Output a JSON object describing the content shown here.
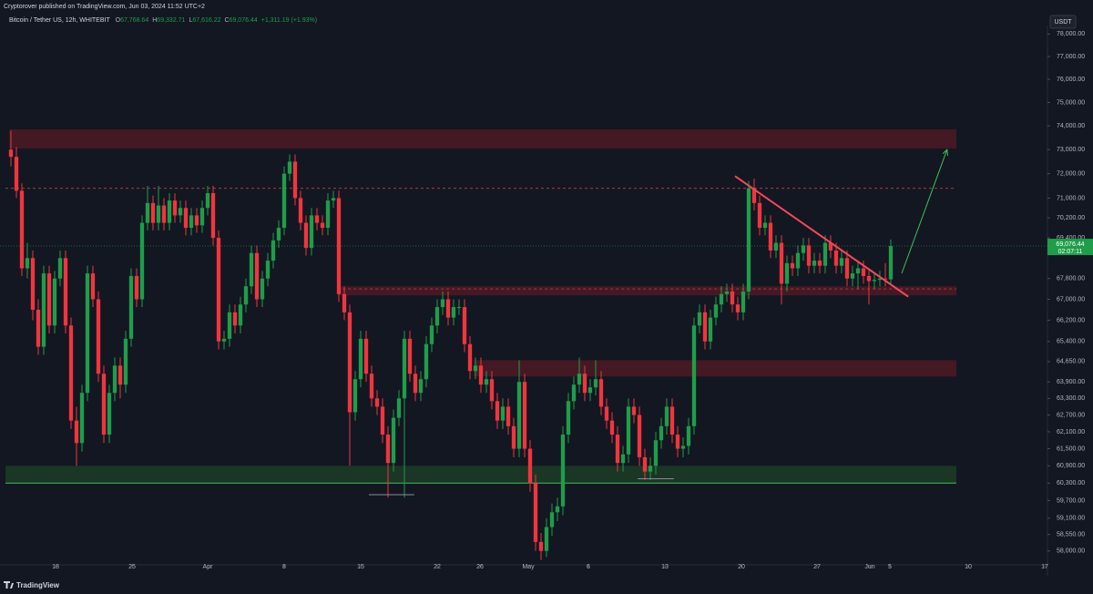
{
  "header": {
    "publisher": "Cryptorover published on TradingView.com, Jun 03, 2024 11:52 UTC+2",
    "symbol": "Bitcoin / Tether US, 12h, WHITEBIT",
    "ohlc": [
      {
        "key": "O",
        "value": "67,768.64"
      },
      {
        "key": "H",
        "value": "69,332.71"
      },
      {
        "key": "L",
        "value": "67,616.22"
      },
      {
        "key": "C",
        "value": "69,076.44"
      }
    ],
    "change": "+1,311.19 (+1.93%)"
  },
  "footer": {
    "brand": "TradingView"
  },
  "chart_data": {
    "type": "candlestick",
    "log_scale": true,
    "currency": "USDT",
    "up_color": "#1f9d4a",
    "down_color": "#f0353f",
    "last_price_label": "69,076.44",
    "countdown": "02:07:11",
    "ylim": [
      57600,
      78300
    ],
    "xlim": [
      -2,
      189.67
    ],
    "yticks": [
      {
        "value": 78000,
        "label": "78,000.00"
      },
      {
        "value": 77000,
        "label": "77,000.00"
      },
      {
        "value": 76000,
        "label": "76,000.00"
      },
      {
        "value": 75000,
        "label": "75,000.00"
      },
      {
        "value": 74000,
        "label": "74,000.00"
      },
      {
        "value": 73000,
        "label": "73,000.00"
      },
      {
        "value": 72000,
        "label": "72,000.00"
      },
      {
        "value": 71000,
        "label": "71,000.00"
      },
      {
        "value": 70200,
        "label": "70,200.00"
      },
      {
        "value": 69400,
        "label": "69,400.00"
      },
      {
        "value": 67800,
        "label": "67,800.00"
      },
      {
        "value": 67000,
        "label": "67,000.00"
      },
      {
        "value": 66200,
        "label": "66,200.00"
      },
      {
        "value": 65400,
        "label": "65,400.00"
      },
      {
        "value": 64650,
        "label": "64,650.00"
      },
      {
        "value": 63900,
        "label": "63,900.00"
      },
      {
        "value": 63300,
        "label": "63,300.00"
      },
      {
        "value": 62700,
        "label": "62,700.00"
      },
      {
        "value": 62100,
        "label": "62,100.00"
      },
      {
        "value": 61500,
        "label": "61,500.00"
      },
      {
        "value": 60900,
        "label": "60,900.00"
      },
      {
        "value": 60300,
        "label": "60,300.00"
      },
      {
        "value": 59700,
        "label": "59,700.00"
      },
      {
        "value": 59100,
        "label": "59,100.00"
      },
      {
        "value": 58550,
        "label": "58,550.00"
      },
      {
        "value": 58000,
        "label": "58,000.00"
      }
    ],
    "xticks": [
      {
        "value": 8.17,
        "label": "18"
      },
      {
        "value": 22.17,
        "label": "25"
      },
      {
        "value": 36,
        "label": "Apr"
      },
      {
        "value": 50,
        "label": "8"
      },
      {
        "value": 64,
        "label": "15"
      },
      {
        "value": 78,
        "label": "22"
      },
      {
        "value": 85.83,
        "label": "26"
      },
      {
        "value": 94.67,
        "label": "May"
      },
      {
        "value": 105.67,
        "label": "6"
      },
      {
        "value": 119.67,
        "label": "13"
      },
      {
        "value": 133.67,
        "label": "20"
      },
      {
        "value": 147.5,
        "label": "27"
      },
      {
        "value": 157.17,
        "label": "Jun"
      },
      {
        "value": 160.83,
        "label": "5"
      },
      {
        "value": 175.17,
        "label": "10"
      },
      {
        "value": 189.17,
        "label": "17"
      }
    ],
    "zones": [
      {
        "low": 73050,
        "high": 73850,
        "from": -0.3,
        "to": 173,
        "color": "#4a1a24"
      },
      {
        "low": 67150,
        "high": 67500,
        "from": 59.7,
        "to": 173,
        "color": "#4a1a24"
      },
      {
        "low": 64100,
        "high": 64700,
        "from": 84.7,
        "to": 173,
        "color": "#4a1a24"
      },
      {
        "low": 60300,
        "high": 60900,
        "from": -1,
        "to": 173,
        "color": "#1c3a26"
      }
    ],
    "levels": [
      {
        "price": 71400,
        "from": -1,
        "to": 173,
        "color": "#a83a44",
        "dashed": true
      },
      {
        "price": 67400,
        "from": 59.7,
        "to": 173,
        "color": "#a83a44",
        "dashed": true
      },
      {
        "price": 60300,
        "from": -1,
        "to": 173,
        "color": "#3fbf5a",
        "dashed": false
      }
    ],
    "trendlines": [
      {
        "x": [
          132.5,
          164.2
        ],
        "y": [
          71900,
          67100
        ],
        "color": "#f24a5a",
        "width": 2,
        "arrow": false
      },
      {
        "x": [
          163,
          171.3
        ],
        "y": [
          68000,
          73000
        ],
        "color": "#3fbf5a",
        "width": 1,
        "arrow": true
      },
      {
        "x": [
          65.5,
          73.8
        ],
        "y": [
          59900,
          59900
        ],
        "color": "#8a8e99",
        "width": 1,
        "arrow": false
      },
      {
        "x": [
          114.7,
          121.3
        ],
        "y": [
          60450,
          60450
        ],
        "color": "#8a8e99",
        "width": 1,
        "arrow": false
      }
    ],
    "candles": [
      [
        73000,
        73800,
        72300,
        72700
      ],
      [
        72700,
        73100,
        71000,
        71300
      ],
      [
        71300,
        71600,
        67900,
        68200
      ],
      [
        68200,
        69200,
        67800,
        68600
      ],
      [
        68600,
        68900,
        66200,
        66600
      ],
      [
        66600,
        67000,
        64900,
        65200
      ],
      [
        65200,
        68300,
        64900,
        68000
      ],
      [
        68000,
        68300,
        65700,
        66000
      ],
      [
        66000,
        68100,
        65700,
        67800
      ],
      [
        67800,
        68900,
        67500,
        68600
      ],
      [
        68600,
        68900,
        65700,
        66000
      ],
      [
        66000,
        66300,
        62200,
        62500
      ],
      [
        62500,
        63000,
        60900,
        61700
      ],
      [
        61700,
        63800,
        61400,
        63500
      ],
      [
        63500,
        68300,
        63200,
        68000
      ],
      [
        68000,
        68300,
        66700,
        67000
      ],
      [
        67000,
        67300,
        63900,
        64200
      ],
      [
        64200,
        64500,
        61700,
        62000
      ],
      [
        62000,
        63800,
        61700,
        63500
      ],
      [
        63500,
        64800,
        63200,
        64500
      ],
      [
        64500,
        64800,
        63300,
        63800
      ],
      [
        63800,
        65800,
        63500,
        65500
      ],
      [
        65500,
        68200,
        65200,
        67900
      ],
      [
        67900,
        68200,
        66700,
        67000
      ],
      [
        67000,
        70300,
        66700,
        70000
      ],
      [
        70000,
        71500,
        69700,
        70800
      ],
      [
        70800,
        71100,
        69700,
        70000
      ],
      [
        70000,
        71500,
        69700,
        70700
      ],
      [
        70700,
        71000,
        69700,
        70000
      ],
      [
        70000,
        71200,
        69700,
        70900
      ],
      [
        70900,
        71200,
        70000,
        70300
      ],
      [
        70300,
        70900,
        70000,
        70600
      ],
      [
        70600,
        70900,
        69500,
        69800
      ],
      [
        69800,
        70600,
        69500,
        70300
      ],
      [
        70300,
        70600,
        69600,
        69900
      ],
      [
        69900,
        70900,
        69600,
        70600
      ],
      [
        70600,
        71500,
        70300,
        71200
      ],
      [
        71200,
        71500,
        69100,
        69400
      ],
      [
        69400,
        69700,
        65100,
        65400
      ],
      [
        65400,
        65800,
        65100,
        65500
      ],
      [
        65500,
        66800,
        65200,
        66500
      ],
      [
        66500,
        66800,
        65700,
        66000
      ],
      [
        66000,
        67100,
        65700,
        66800
      ],
      [
        66800,
        67800,
        66500,
        67500
      ],
      [
        67500,
        69100,
        67200,
        68800
      ],
      [
        68800,
        69100,
        66700,
        67000
      ],
      [
        67000,
        68100,
        66700,
        67800
      ],
      [
        67800,
        68800,
        67500,
        68500
      ],
      [
        68500,
        69600,
        68200,
        69300
      ],
      [
        69300,
        70100,
        69000,
        69800
      ],
      [
        69800,
        72300,
        69500,
        72000
      ],
      [
        72000,
        72800,
        71700,
        72500
      ],
      [
        72500,
        72800,
        70700,
        71000
      ],
      [
        71000,
        71300,
        69700,
        70000
      ],
      [
        70000,
        70300,
        68700,
        69000
      ],
      [
        69000,
        70600,
        68700,
        70300
      ],
      [
        70300,
        70600,
        69700,
        70000
      ],
      [
        70000,
        70300,
        69500,
        69800
      ],
      [
        69800,
        71200,
        69500,
        70900
      ],
      [
        70900,
        71300,
        70600,
        71000
      ],
      [
        71000,
        71300,
        66900,
        67200
      ],
      [
        67200,
        67500,
        66200,
        66500
      ],
      [
        66500,
        66800,
        60900,
        62800
      ],
      [
        62800,
        64300,
        62500,
        64000
      ],
      [
        64000,
        65800,
        63700,
        65500
      ],
      [
        65500,
        65800,
        63900,
        64200
      ],
      [
        64200,
        64500,
        63000,
        63300
      ],
      [
        63300,
        63600,
        62700,
        63000
      ],
      [
        63000,
        63300,
        61700,
        62000
      ],
      [
        62000,
        62300,
        59800,
        61000
      ],
      [
        61000,
        62900,
        60700,
        62600
      ],
      [
        62600,
        63600,
        62300,
        63300
      ],
      [
        63300,
        65800,
        59800,
        65500
      ],
      [
        65500,
        65800,
        63900,
        64200
      ],
      [
        64200,
        64500,
        63200,
        63500
      ],
      [
        63500,
        64300,
        63200,
        64000
      ],
      [
        64000,
        65600,
        63700,
        65300
      ],
      [
        65300,
        66300,
        65000,
        66000
      ],
      [
        66000,
        67000,
        65700,
        66700
      ],
      [
        66700,
        67300,
        66400,
        67000
      ],
      [
        67000,
        67300,
        66000,
        66300
      ],
      [
        66300,
        67000,
        66000,
        66700
      ],
      [
        66700,
        67000,
        66400,
        66700
      ],
      [
        66700,
        67000,
        65000,
        65300
      ],
      [
        65300,
        65600,
        64000,
        64300
      ],
      [
        64300,
        64800,
        64000,
        64500
      ],
      [
        64500,
        64800,
        63500,
        63800
      ],
      [
        63800,
        64300,
        63500,
        64000
      ],
      [
        64000,
        64300,
        62900,
        63200
      ],
      [
        63200,
        63500,
        62200,
        62500
      ],
      [
        62500,
        63300,
        62200,
        63000
      ],
      [
        63000,
        63300,
        62000,
        62300
      ],
      [
        62300,
        62600,
        61200,
        61500
      ],
      [
        61500,
        64700,
        61200,
        63900
      ],
      [
        63900,
        64200,
        61200,
        61500
      ],
      [
        61500,
        61800,
        60000,
        60300
      ],
      [
        60300,
        60600,
        58000,
        58300
      ],
      [
        58300,
        58600,
        57700,
        58000
      ],
      [
        58000,
        59100,
        57800,
        58800
      ],
      [
        58800,
        59600,
        58500,
        59300
      ],
      [
        59300,
        59800,
        59000,
        59500
      ],
      [
        59500,
        62300,
        59200,
        62000
      ],
      [
        62000,
        63500,
        61700,
        63200
      ],
      [
        63200,
        64100,
        62900,
        63800
      ],
      [
        63800,
        64800,
        63500,
        64200
      ],
      [
        64200,
        64500,
        63200,
        63500
      ],
      [
        63500,
        64000,
        63200,
        63700
      ],
      [
        63700,
        64700,
        63400,
        64000
      ],
      [
        64000,
        64300,
        62700,
        63000
      ],
      [
        63000,
        63300,
        62200,
        62500
      ],
      [
        62500,
        62800,
        61700,
        62000
      ],
      [
        62000,
        62300,
        60700,
        61000
      ],
      [
        61000,
        61600,
        60700,
        61300
      ],
      [
        61300,
        63300,
        61000,
        63000
      ],
      [
        63000,
        63300,
        62400,
        62700
      ],
      [
        62700,
        63000,
        60900,
        61200
      ],
      [
        61200,
        61500,
        60400,
        60700
      ],
      [
        60700,
        61200,
        60400,
        60900
      ],
      [
        60900,
        62100,
        60600,
        61800
      ],
      [
        61800,
        62600,
        61500,
        62300
      ],
      [
        62300,
        63300,
        62000,
        63000
      ],
      [
        63000,
        63300,
        61700,
        62000
      ],
      [
        62000,
        62300,
        61200,
        61500
      ],
      [
        61500,
        61900,
        61200,
        61600
      ],
      [
        61600,
        62600,
        61300,
        62300
      ],
      [
        62300,
        66300,
        62000,
        66000
      ],
      [
        66000,
        66800,
        65700,
        66500
      ],
      [
        66500,
        66800,
        65100,
        65400
      ],
      [
        65400,
        66600,
        65100,
        66300
      ],
      [
        66300,
        67100,
        66000,
        66800
      ],
      [
        66800,
        67500,
        66500,
        67200
      ],
      [
        67200,
        67600,
        66900,
        67300
      ],
      [
        67300,
        67600,
        66500,
        66800
      ],
      [
        66800,
        67100,
        66200,
        66500
      ],
      [
        66500,
        67600,
        66200,
        67300
      ],
      [
        67300,
        71700,
        67000,
        71400
      ],
      [
        71400,
        71800,
        70500,
        70800
      ],
      [
        70800,
        71100,
        69500,
        69800
      ],
      [
        69800,
        70300,
        69500,
        70000
      ],
      [
        70000,
        70300,
        68600,
        68900
      ],
      [
        68900,
        69500,
        68600,
        69200
      ],
      [
        69200,
        69500,
        66800,
        67600
      ],
      [
        67600,
        68700,
        67300,
        68400
      ],
      [
        68400,
        68700,
        67900,
        68200
      ],
      [
        68200,
        69100,
        67900,
        68800
      ],
      [
        68800,
        69400,
        68500,
        69100
      ],
      [
        69100,
        69400,
        68000,
        68300
      ],
      [
        68300,
        68800,
        68000,
        68500
      ],
      [
        68500,
        68800,
        68000,
        68300
      ],
      [
        68300,
        69500,
        68000,
        69200
      ],
      [
        69200,
        69500,
        68600,
        68900
      ],
      [
        68900,
        69200,
        68000,
        68300
      ],
      [
        68300,
        68900,
        68000,
        68600
      ],
      [
        68600,
        68900,
        67500,
        67800
      ],
      [
        67800,
        68300,
        67500,
        68000
      ],
      [
        68000,
        68500,
        67400,
        68200
      ],
      [
        68200,
        68500,
        67600,
        67900
      ],
      [
        67900,
        68200,
        66800,
        67700
      ],
      [
        67700,
        68000,
        67400,
        67750
      ],
      [
        67750,
        68100,
        67500,
        67800
      ],
      [
        67800,
        68400,
        67500,
        67768.64
      ],
      [
        67768.64,
        69332.71,
        67616.22,
        69076.44
      ]
    ]
  }
}
